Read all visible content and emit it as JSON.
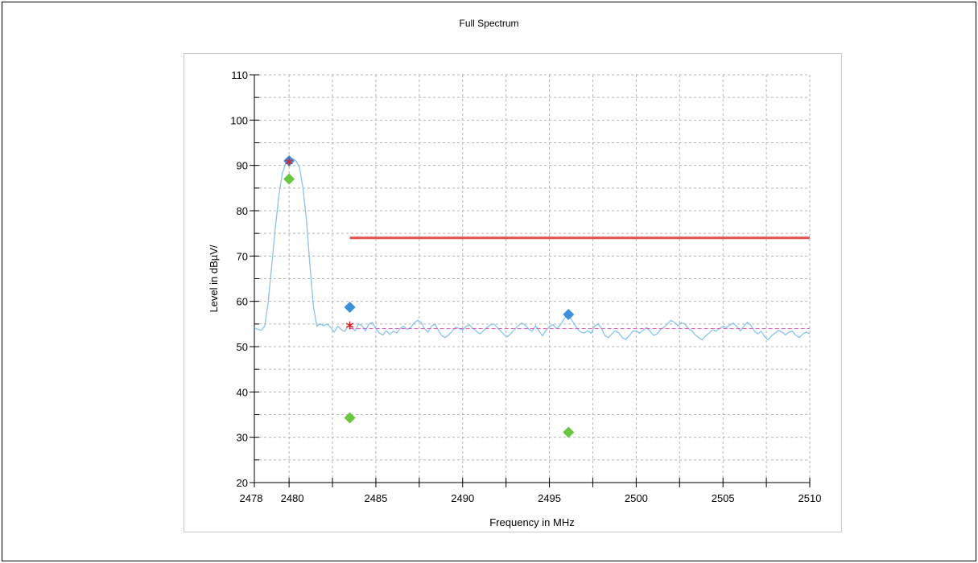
{
  "chart_data": {
    "type": "line",
    "title": "Full Spectrum",
    "xlabel": "Frequency in MHz",
    "ylabel": "Level in dBµV/",
    "xlim": [
      2478,
      2510
    ],
    "ylim": [
      20,
      110
    ],
    "x_ticks": [
      2478,
      2480,
      2485,
      2490,
      2495,
      2500,
      2505,
      2510
    ],
    "y_ticks": [
      20,
      30,
      40,
      50,
      60,
      70,
      80,
      90,
      100,
      110
    ],
    "grid": true,
    "colors": {
      "spectrum": "#88c4ec",
      "limit": "#e8504a",
      "avg_limit": "#e060c0",
      "peak_marker": "#3c8fdc",
      "avg_marker": "#66c83c",
      "star_marker": "#e02020"
    },
    "series": [
      {
        "kind": "spectrum",
        "points": [
          [
            2478.0,
            54.2
          ],
          [
            2478.2,
            53.8
          ],
          [
            2478.4,
            53.6
          ],
          [
            2478.6,
            54.5
          ],
          [
            2478.8,
            60.0
          ],
          [
            2479.0,
            68.0
          ],
          [
            2479.2,
            76.0
          ],
          [
            2479.4,
            83.0
          ],
          [
            2479.6,
            88.0
          ],
          [
            2479.8,
            90.5
          ],
          [
            2480.0,
            91.2
          ],
          [
            2480.2,
            91.5
          ],
          [
            2480.4,
            91.0
          ],
          [
            2480.6,
            89.5
          ],
          [
            2480.8,
            85.0
          ],
          [
            2481.0,
            78.0
          ],
          [
            2481.2,
            68.0
          ],
          [
            2481.4,
            59.0
          ],
          [
            2481.6,
            54.5
          ],
          [
            2481.8,
            55.0
          ],
          [
            2482.0,
            54.6
          ],
          [
            2482.2,
            55.0
          ],
          [
            2482.4,
            54.2
          ],
          [
            2482.6,
            53.2
          ],
          [
            2482.8,
            54.5
          ],
          [
            2483.0,
            53.8
          ],
          [
            2483.2,
            53.3
          ],
          [
            2483.4,
            54.5
          ],
          [
            2483.6,
            54.2
          ],
          [
            2483.8,
            53.5
          ],
          [
            2484.0,
            55.0
          ],
          [
            2484.2,
            54.6
          ],
          [
            2484.4,
            53.5
          ],
          [
            2484.6,
            55.0
          ],
          [
            2484.8,
            55.3
          ],
          [
            2485.0,
            54.0
          ],
          [
            2485.2,
            53.0
          ],
          [
            2485.4,
            52.6
          ],
          [
            2485.6,
            53.5
          ],
          [
            2485.8,
            52.7
          ],
          [
            2486.0,
            53.4
          ],
          [
            2486.2,
            53.0
          ],
          [
            2486.4,
            54.0
          ],
          [
            2486.6,
            54.5
          ],
          [
            2486.8,
            53.8
          ],
          [
            2487.0,
            54.2
          ],
          [
            2487.2,
            55.2
          ],
          [
            2487.4,
            55.8
          ],
          [
            2487.6,
            55.4
          ],
          [
            2487.8,
            54.0
          ],
          [
            2488.0,
            53.2
          ],
          [
            2488.2,
            54.5
          ],
          [
            2488.4,
            55.0
          ],
          [
            2488.6,
            53.6
          ],
          [
            2488.8,
            52.4
          ],
          [
            2489.0,
            52.0
          ],
          [
            2489.2,
            52.6
          ],
          [
            2489.4,
            53.4
          ],
          [
            2489.6,
            54.3
          ],
          [
            2489.8,
            54.0
          ],
          [
            2490.0,
            53.7
          ],
          [
            2490.2,
            54.5
          ],
          [
            2490.4,
            54.8
          ],
          [
            2490.6,
            54.0
          ],
          [
            2490.8,
            53.4
          ],
          [
            2491.0,
            52.8
          ],
          [
            2491.2,
            53.5
          ],
          [
            2491.4,
            54.2
          ],
          [
            2491.6,
            54.8
          ],
          [
            2491.8,
            55.0
          ],
          [
            2492.0,
            54.2
          ],
          [
            2492.2,
            53.4
          ],
          [
            2492.4,
            52.6
          ],
          [
            2492.6,
            52.2
          ],
          [
            2492.8,
            53.0
          ],
          [
            2493.0,
            53.8
          ],
          [
            2493.2,
            54.6
          ],
          [
            2493.4,
            55.2
          ],
          [
            2493.6,
            54.8
          ],
          [
            2493.8,
            53.9
          ],
          [
            2494.0,
            53.4
          ],
          [
            2494.2,
            54.6
          ],
          [
            2494.4,
            53.5
          ],
          [
            2494.6,
            52.4
          ],
          [
            2494.8,
            53.6
          ],
          [
            2495.0,
            54.4
          ],
          [
            2495.2,
            54.9
          ],
          [
            2495.4,
            54.0
          ],
          [
            2495.6,
            54.6
          ],
          [
            2495.8,
            55.8
          ],
          [
            2496.0,
            57.0
          ],
          [
            2496.2,
            56.4
          ],
          [
            2496.4,
            55.2
          ],
          [
            2496.6,
            54.0
          ],
          [
            2496.8,
            53.2
          ],
          [
            2497.0,
            53.0
          ],
          [
            2497.2,
            53.5
          ],
          [
            2497.4,
            53.0
          ],
          [
            2497.6,
            54.5
          ],
          [
            2497.8,
            55.0
          ],
          [
            2498.0,
            54.0
          ],
          [
            2498.2,
            52.4
          ],
          [
            2498.4,
            52.0
          ],
          [
            2498.6,
            52.8
          ],
          [
            2498.8,
            53.5
          ],
          [
            2499.0,
            53.0
          ],
          [
            2499.2,
            52.0
          ],
          [
            2499.4,
            51.6
          ],
          [
            2499.6,
            52.4
          ],
          [
            2499.8,
            53.4
          ],
          [
            2500.0,
            53.5
          ],
          [
            2500.2,
            53.0
          ],
          [
            2500.4,
            53.6
          ],
          [
            2500.6,
            54.2
          ],
          [
            2500.8,
            53.4
          ],
          [
            2501.0,
            52.5
          ],
          [
            2501.2,
            52.8
          ],
          [
            2501.4,
            53.8
          ],
          [
            2501.6,
            54.3
          ],
          [
            2501.8,
            55.0
          ],
          [
            2502.0,
            55.8
          ],
          [
            2502.2,
            55.4
          ],
          [
            2502.4,
            54.6
          ],
          [
            2502.6,
            55.3
          ],
          [
            2502.8,
            55.0
          ],
          [
            2503.0,
            54.0
          ],
          [
            2503.2,
            53.5
          ],
          [
            2503.4,
            52.6
          ],
          [
            2503.6,
            52.0
          ],
          [
            2503.8,
            51.5
          ],
          [
            2504.0,
            52.4
          ],
          [
            2504.2,
            53.0
          ],
          [
            2504.4,
            53.7
          ],
          [
            2504.6,
            53.4
          ],
          [
            2504.8,
            54.0
          ],
          [
            2505.0,
            54.5
          ],
          [
            2505.2,
            54.2
          ],
          [
            2505.4,
            54.8
          ],
          [
            2505.6,
            55.2
          ],
          [
            2505.8,
            54.4
          ],
          [
            2506.0,
            53.5
          ],
          [
            2506.2,
            54.5
          ],
          [
            2506.4,
            55.4
          ],
          [
            2506.6,
            54.8
          ],
          [
            2506.8,
            53.5
          ],
          [
            2507.0,
            52.8
          ],
          [
            2507.2,
            53.4
          ],
          [
            2507.4,
            52.2
          ],
          [
            2507.6,
            51.5
          ],
          [
            2507.8,
            52.4
          ],
          [
            2508.0,
            53.0
          ],
          [
            2508.2,
            53.6
          ],
          [
            2508.4,
            53.2
          ],
          [
            2508.6,
            52.6
          ],
          [
            2508.8,
            53.2
          ],
          [
            2509.0,
            53.4
          ],
          [
            2509.2,
            52.5
          ],
          [
            2509.4,
            52.0
          ],
          [
            2509.6,
            52.8
          ],
          [
            2509.8,
            53.2
          ],
          [
            2510.0,
            52.8
          ]
        ]
      },
      {
        "kind": "limit",
        "points": [
          [
            2483.5,
            74
          ],
          [
            2510,
            74
          ]
        ]
      },
      {
        "kind": "avg_limit",
        "points": [
          [
            2483.5,
            54
          ],
          [
            2510,
            54
          ]
        ]
      },
      {
        "kind": "peak_markers",
        "points": [
          [
            2480.0,
            91.0
          ],
          [
            2483.5,
            58.7
          ],
          [
            2496.1,
            57.1
          ]
        ]
      },
      {
        "kind": "avg_markers",
        "points": [
          [
            2480.0,
            87.0
          ],
          [
            2483.5,
            34.3
          ],
          [
            2496.1,
            31.1
          ]
        ]
      },
      {
        "kind": "star_markers",
        "points": [
          [
            2480.0,
            90.8
          ],
          [
            2483.5,
            54.7
          ]
        ]
      }
    ]
  }
}
